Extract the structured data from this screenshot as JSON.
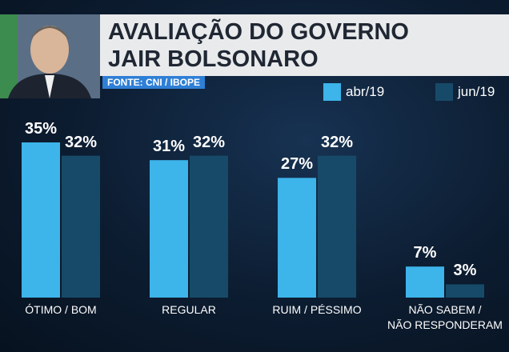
{
  "chart_data": {
    "type": "bar",
    "title": "AVALIAÇÃO DO GOVERNO\nJAIR BOLSONARO",
    "source": "FONTE: CNI / IBOPE",
    "categories": [
      "ÓTIMO / BOM",
      "REGULAR",
      "RUIM / PÉSSIMO",
      "NÃO SABEM /\nNÃO RESPONDERAM"
    ],
    "series": [
      {
        "name": "abr/19",
        "color": "#3db4ea",
        "values": [
          35,
          31,
          27,
          7
        ],
        "value_labels": [
          "35%",
          "31%",
          "27%",
          "7%"
        ]
      },
      {
        "name": "jun/19",
        "color": "#174a68",
        "values": [
          32,
          32,
          32,
          3
        ],
        "value_labels": [
          "32%",
          "32%",
          "32%",
          "3%"
        ]
      }
    ]
  }
}
